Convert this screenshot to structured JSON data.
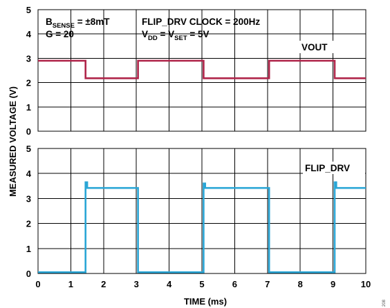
{
  "chart_data": [
    {
      "type": "line",
      "ylim": [
        0,
        5
      ],
      "yticks": [
        "0",
        "1",
        "2",
        "3",
        "4",
        "5"
      ],
      "xlim": [
        0,
        10
      ],
      "grid": true,
      "series": [
        {
          "name": "VOUT",
          "color": "#b0254a",
          "x": [
            0,
            1.45,
            1.45,
            3.05,
            3.05,
            5.05,
            5.05,
            7.05,
            7.05,
            9.05,
            9.05,
            10
          ],
          "y": [
            2.9,
            2.9,
            2.18,
            2.18,
            2.9,
            2.9,
            2.18,
            2.18,
            2.9,
            2.9,
            2.18,
            2.18
          ]
        }
      ],
      "annotations": {
        "bsense": {
          "main": "B",
          "sub": "SENSE",
          "rest": " = ±8mT"
        },
        "gain": "G = 20",
        "clock": "FLIP_DRV CLOCK = 200Hz",
        "vdd": {
          "v1": "V",
          "sub1": "DD",
          "mid": " = V",
          "sub2": "SET",
          "rest": " = 5V"
        }
      }
    },
    {
      "type": "line",
      "ylim": [
        0,
        5
      ],
      "yticks": [
        "0",
        "1",
        "2",
        "3",
        "4",
        "5"
      ],
      "xlim": [
        0,
        10
      ],
      "xticks": [
        "0",
        "1",
        "2",
        "3",
        "4",
        "5",
        "6",
        "7",
        "8",
        "9",
        "10"
      ],
      "grid": true,
      "series": [
        {
          "name": "FLIP_DRV",
          "color": "#2aa6d6",
          "x": [
            0,
            1.45,
            1.45,
            1.5,
            1.5,
            3.05,
            3.05,
            5.05,
            5.05,
            5.1,
            5.1,
            7.05,
            7.05,
            9.05,
            9.05,
            9.1,
            9.1,
            10
          ],
          "y": [
            0.05,
            0.05,
            3.65,
            3.65,
            3.42,
            3.42,
            0.05,
            0.05,
            3.6,
            3.6,
            3.42,
            3.42,
            0.05,
            0.05,
            3.65,
            3.65,
            3.42,
            3.42
          ]
        }
      ]
    }
  ],
  "ylabel": "MEASURED VOLTAGE (V)",
  "xlabel": "TIME (ms)",
  "figure_id": "208"
}
